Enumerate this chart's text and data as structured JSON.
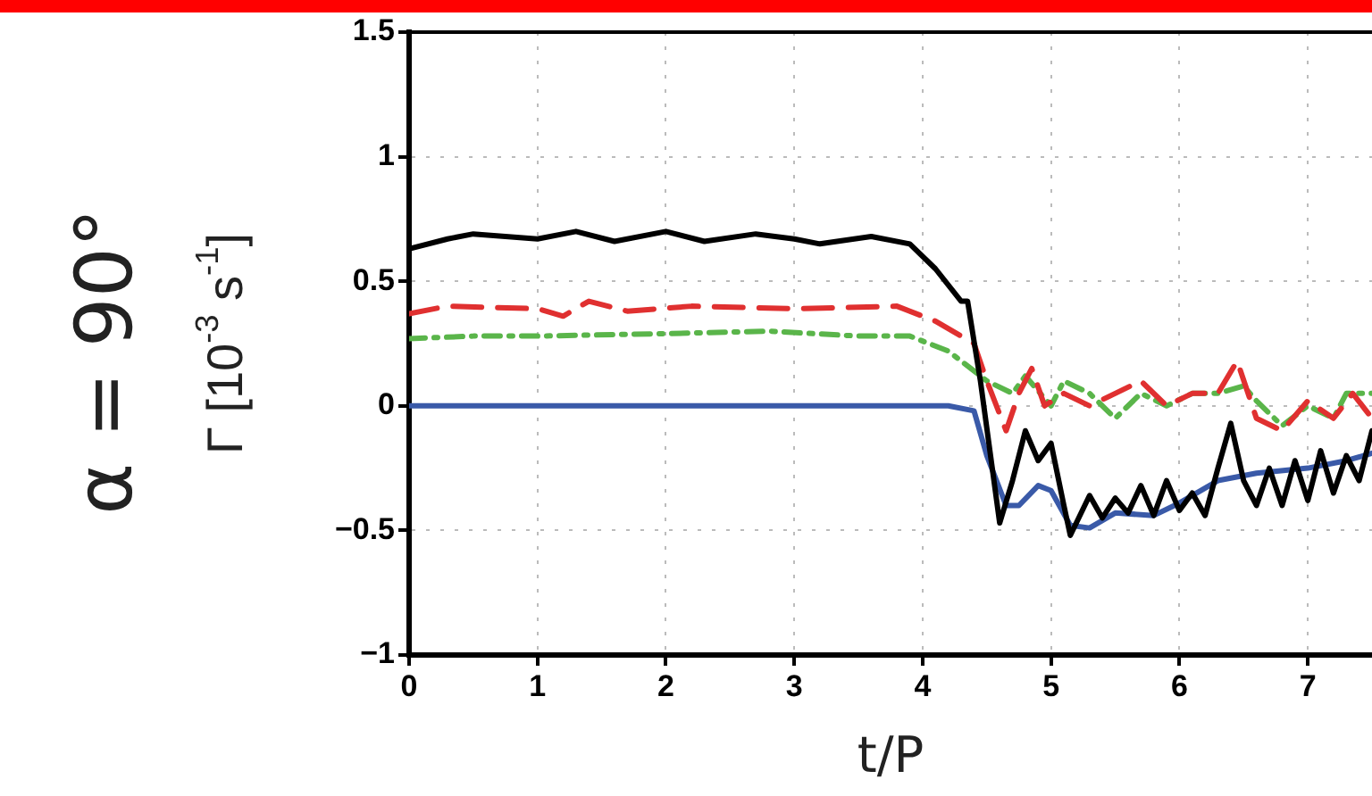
{
  "chart_data": {
    "type": "line",
    "xlabel": "t/P",
    "ylabel": "Γ [10$^{-3}$ s$^{-1}$]",
    "annotations": [
      "α = 90°"
    ],
    "xlim": [
      0,
      7.5
    ],
    "xticks": [
      0,
      1,
      2,
      3,
      4,
      5,
      6,
      7
    ],
    "ylim": [
      -1,
      1.5
    ],
    "yticks": [
      -1,
      -0.5,
      0,
      0.5,
      1,
      1.5
    ],
    "grid": true,
    "legend": false,
    "marker": "none",
    "series": [
      {
        "color": "#000000",
        "line_style": "solid",
        "x": [
          0,
          0.3,
          0.5,
          1,
          1.3,
          1.6,
          2,
          2.3,
          2.7,
          3,
          3.2,
          3.6,
          3.9,
          4.1,
          4.3,
          4.35,
          4.45,
          4.6,
          4.7,
          4.8,
          4.9,
          5.0,
          5.1,
          5.15,
          5.3,
          5.4,
          5.5,
          5.6,
          5.7,
          5.8,
          5.9,
          6.0,
          6.1,
          6.2,
          6.3,
          6.4,
          6.5,
          6.6,
          6.7,
          6.8,
          6.9,
          7.0,
          7.1,
          7.2,
          7.3,
          7.4,
          7.5
        ],
        "values": [
          0.63,
          0.67,
          0.69,
          0.67,
          0.7,
          0.66,
          0.7,
          0.66,
          0.69,
          0.67,
          0.65,
          0.68,
          0.65,
          0.55,
          0.42,
          0.42,
          0.1,
          -0.47,
          -0.3,
          -0.1,
          -0.22,
          -0.15,
          -0.4,
          -0.52,
          -0.36,
          -0.45,
          -0.37,
          -0.43,
          -0.32,
          -0.44,
          -0.3,
          -0.42,
          -0.35,
          -0.44,
          -0.25,
          -0.07,
          -0.3,
          -0.4,
          -0.25,
          -0.4,
          -0.22,
          -0.38,
          -0.18,
          -0.35,
          -0.2,
          -0.3,
          -0.1
        ]
      },
      {
        "color": "#e03030",
        "line_style": "dashed",
        "x": [
          0,
          0.3,
          1,
          1.2,
          1.4,
          1.7,
          2.2,
          3,
          3.8,
          4.1,
          4.4,
          4.5,
          4.65,
          4.75,
          4.85,
          4.95,
          5.1,
          5.3,
          5.5,
          5.7,
          5.9,
          6.1,
          6.3,
          6.45,
          6.6,
          6.8,
          7.0,
          7.2,
          7.35,
          7.5
        ],
        "values": [
          0.37,
          0.4,
          0.39,
          0.36,
          0.42,
          0.38,
          0.4,
          0.39,
          0.4,
          0.34,
          0.25,
          0.1,
          -0.1,
          0.05,
          0.15,
          0.0,
          0.05,
          0.0,
          0.05,
          0.1,
          0.0,
          0.05,
          0.05,
          0.18,
          -0.05,
          -0.1,
          0.02,
          -0.05,
          0.05,
          -0.05
        ]
      },
      {
        "color": "#5ab54a",
        "line_style": "dotted",
        "x": [
          0,
          0.5,
          1,
          2,
          2.8,
          3.5,
          3.9,
          4.2,
          4.5,
          4.7,
          4.8,
          5.0,
          5.1,
          5.3,
          5.5,
          5.7,
          5.9,
          6.1,
          6.3,
          6.5,
          6.6,
          6.8,
          7.0,
          7.2,
          7.3,
          7.5
        ],
        "values": [
          0.27,
          0.28,
          0.28,
          0.29,
          0.3,
          0.28,
          0.28,
          0.22,
          0.1,
          0.05,
          0.12,
          0.0,
          0.1,
          0.05,
          -0.05,
          0.05,
          0.0,
          0.05,
          0.05,
          0.08,
          0.02,
          -0.08,
          0.0,
          -0.05,
          0.05,
          0.05
        ]
      },
      {
        "color": "#3a5aa8",
        "line_style": "solid",
        "x": [
          0,
          4.2,
          4.4,
          4.5,
          4.65,
          4.75,
          4.9,
          5.0,
          5.15,
          5.3,
          5.5,
          5.8,
          6.0,
          6.3,
          6.6,
          7.0,
          7.3,
          7.5
        ],
        "values": [
          0,
          0,
          -0.02,
          -0.2,
          -0.4,
          -0.4,
          -0.32,
          -0.34,
          -0.48,
          -0.49,
          -0.43,
          -0.44,
          -0.39,
          -0.3,
          -0.27,
          -0.25,
          -0.22,
          -0.19
        ]
      }
    ]
  }
}
